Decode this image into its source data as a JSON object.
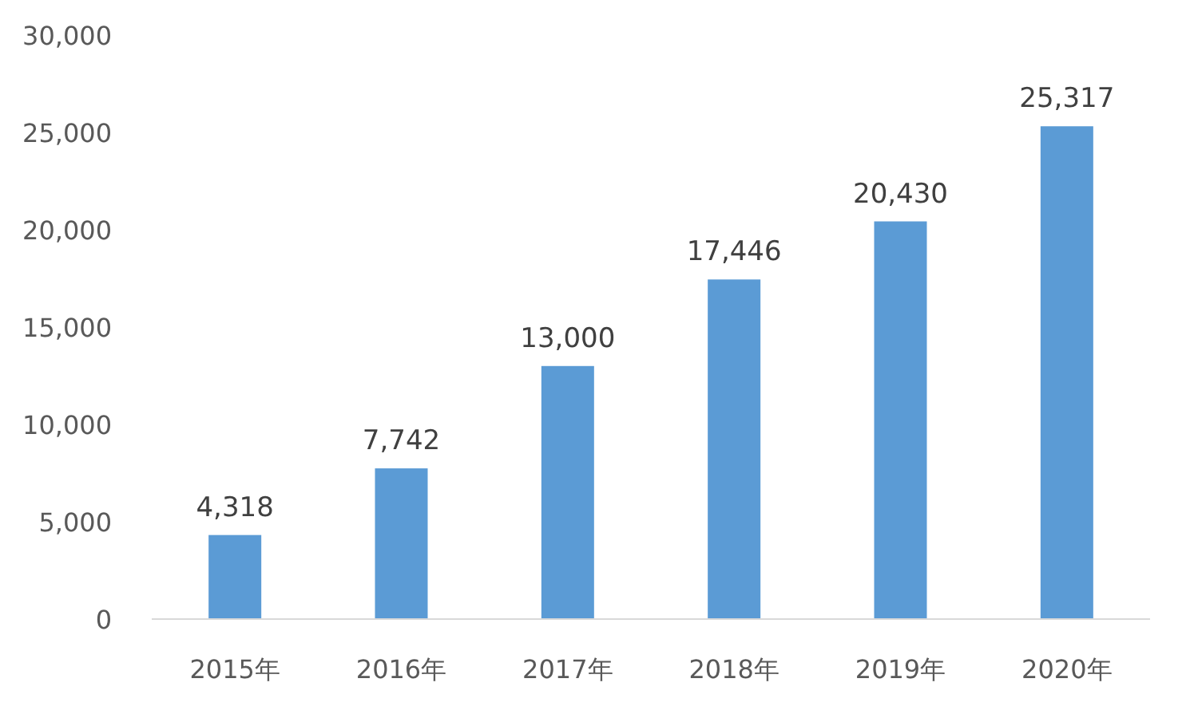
{
  "chart_data": {
    "type": "bar",
    "categories": [
      "2015年",
      "2016年",
      "2017年",
      "2018年",
      "2019年",
      "2020年"
    ],
    "values": [
      4318,
      7742,
      13000,
      17446,
      20430,
      25317
    ],
    "value_labels": [
      "4,318",
      "7,742",
      "13,000",
      "17,446",
      "20,430",
      "25,317"
    ],
    "color": "#5b9bd5",
    "ylim": [
      0,
      30000
    ],
    "yticks": [
      {
        "value": 0,
        "label": "0"
      },
      {
        "value": 5000,
        "label": "5,000"
      },
      {
        "value": 10000,
        "label": "10,000"
      },
      {
        "value": 15000,
        "label": "15,000"
      },
      {
        "value": 20000,
        "label": "20,000"
      },
      {
        "value": 25000,
        "label": "25,000"
      },
      {
        "value": 30000,
        "label": "30,000"
      }
    ],
    "grid": false
  }
}
